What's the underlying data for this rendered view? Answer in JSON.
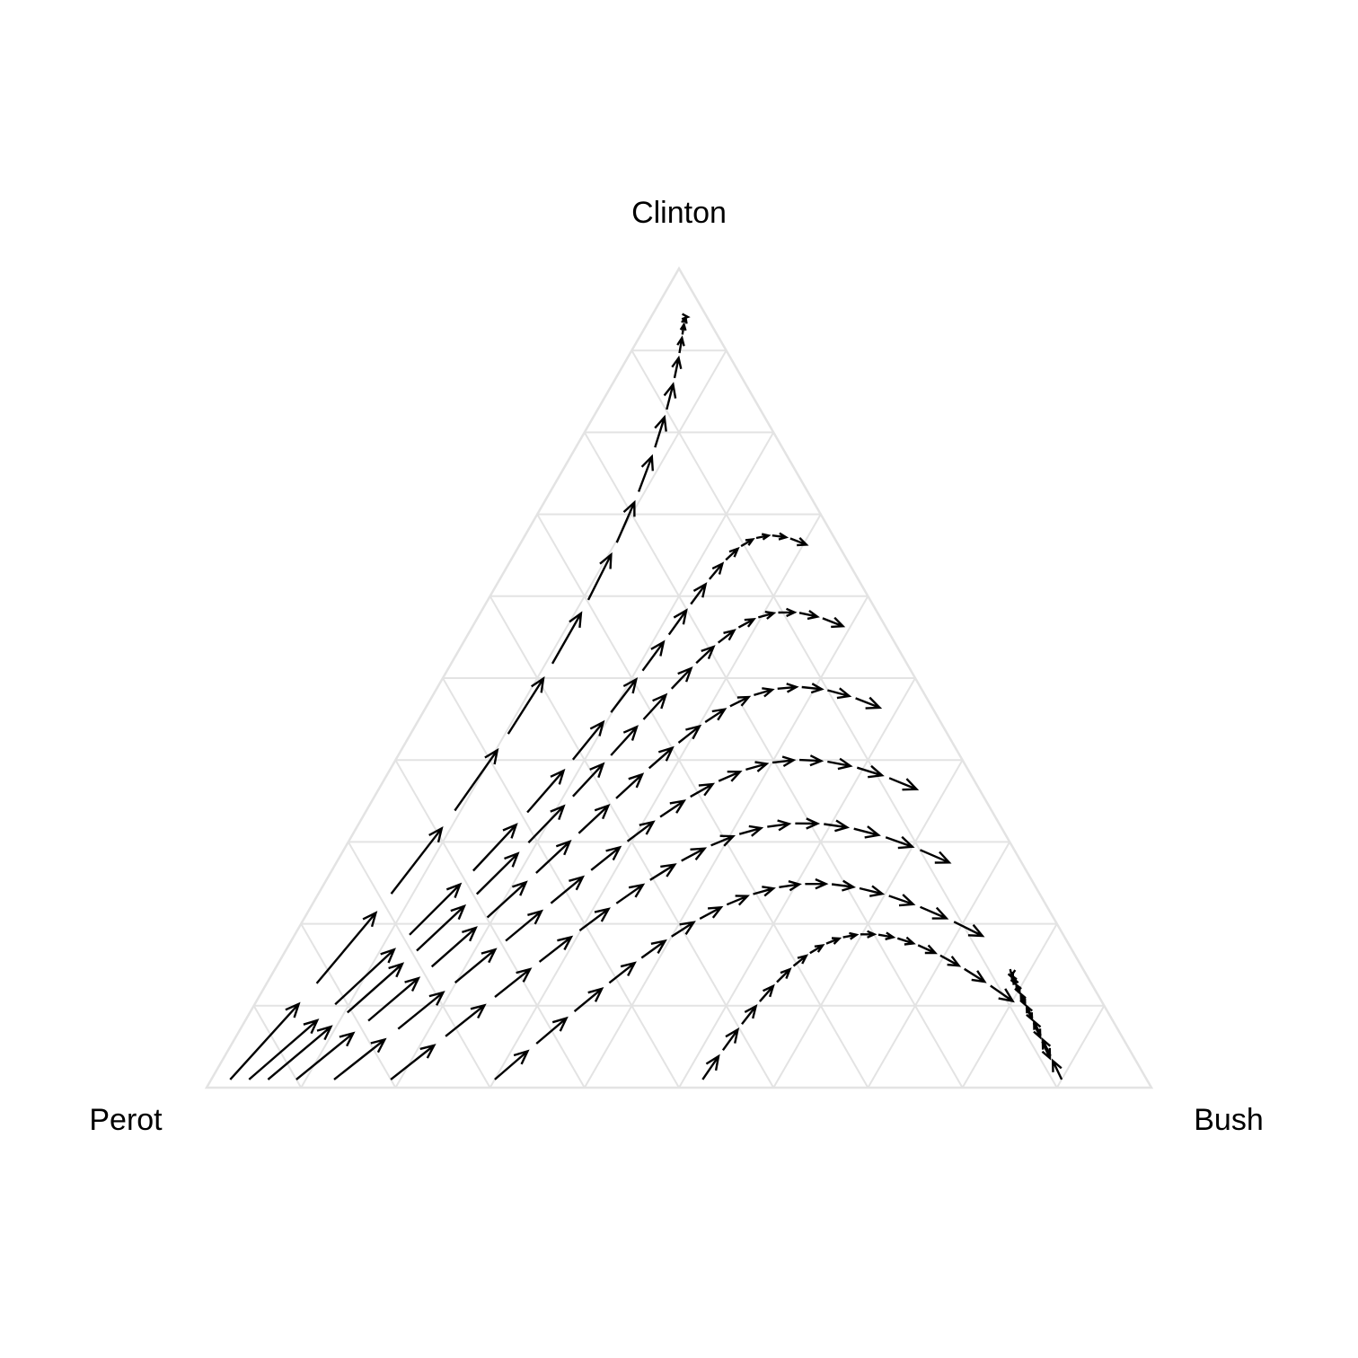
{
  "chart_data": {
    "type": "ternary-flow",
    "vertex_labels": {
      "top": "Clinton",
      "bottom_left": "Perot",
      "bottom_right": "Bush"
    },
    "gridlines": [
      0.1,
      0.2,
      0.3,
      0.4,
      0.5,
      0.6,
      0.7,
      0.8,
      0.9
    ],
    "grid": true,
    "series": [
      {
        "start": [
          0.01,
          0.02,
          0.97
        ],
        "end": [
          0.94,
          0.04,
          0.02
        ]
      },
      {
        "start": [
          0.01,
          0.04,
          0.95
        ],
        "end": [
          0.66,
          0.31,
          0.03
        ]
      },
      {
        "start": [
          0.01,
          0.06,
          0.93
        ],
        "end": [
          0.56,
          0.4,
          0.04
        ]
      },
      {
        "start": [
          0.01,
          0.09,
          0.9
        ],
        "end": [
          0.46,
          0.49,
          0.05
        ]
      },
      {
        "start": [
          0.01,
          0.13,
          0.86
        ],
        "end": [
          0.36,
          0.58,
          0.06
        ]
      },
      {
        "start": [
          0.01,
          0.19,
          0.8
        ],
        "end": [
          0.27,
          0.66,
          0.07
        ]
      },
      {
        "start": [
          0.01,
          0.3,
          0.69
        ],
        "end": [
          0.18,
          0.74,
          0.08
        ]
      },
      {
        "start": [
          0.01,
          0.52,
          0.47
        ],
        "end": [
          0.1,
          0.81,
          0.09
        ]
      },
      {
        "start": [
          0.01,
          0.9,
          0.09
        ],
        "end": [
          0.03,
          0.88,
          0.09
        ]
      }
    ]
  }
}
